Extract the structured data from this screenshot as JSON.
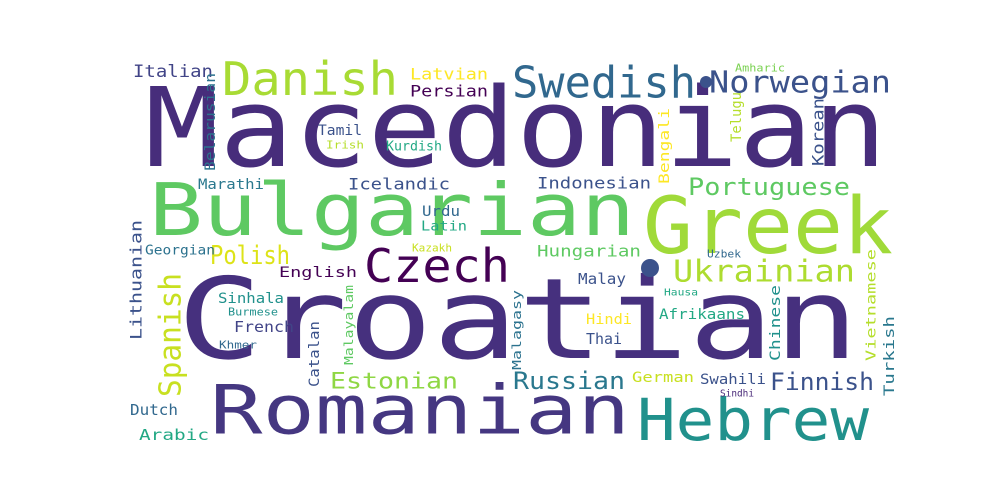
{
  "words": [
    {
      "text": "Macedonian",
      "color": "#472d7b"
    },
    {
      "text": "Croatian",
      "color": "#46307e"
    },
    {
      "text": "Bulgarian",
      "color": "#5ec962"
    },
    {
      "text": "Greek",
      "color": "#a0da39"
    },
    {
      "text": "Romanian",
      "color": "#453781"
    },
    {
      "text": "Hebrew",
      "color": "#21918c"
    },
    {
      "text": "Danish",
      "color": "#a8db34"
    },
    {
      "text": "Swedish",
      "color": "#31688e"
    },
    {
      "text": "Norwegian",
      "color": "#3b528b"
    },
    {
      "text": "Czech",
      "color": "#440154"
    },
    {
      "text": "Ukrainian",
      "color": "#addc30"
    },
    {
      "text": "Portuguese",
      "color": "#5ec962"
    },
    {
      "text": "Spanish",
      "color": "#c8e020"
    },
    {
      "text": "Polish",
      "color": "#dde318"
    },
    {
      "text": "Russian",
      "color": "#2a788e"
    },
    {
      "text": "Estonian",
      "color": "#8fd744"
    },
    {
      "text": "Finnish",
      "color": "#3b528b"
    },
    {
      "text": "Italian",
      "color": "#414487"
    },
    {
      "text": "Latvian",
      "color": "#fde725"
    },
    {
      "text": "Persian",
      "color": "#440154"
    },
    {
      "text": "Belarusian",
      "color": "#2c728e"
    },
    {
      "text": "Amharic",
      "color": "#7ad151"
    },
    {
      "text": "Telugu",
      "color": "#b5de2b"
    },
    {
      "text": "Bengali",
      "color": "#fde725"
    },
    {
      "text": "Korean",
      "color": "#3b528b"
    },
    {
      "text": "Tamil",
      "color": "#3b528b"
    },
    {
      "text": "Irish",
      "color": "#b5de2b"
    },
    {
      "text": "Kurdish",
      "color": "#22a884"
    },
    {
      "text": "Marathi",
      "color": "#2a788e"
    },
    {
      "text": "Icelandic",
      "color": "#3b528b"
    },
    {
      "text": "Indonesian",
      "color": "#3b528b"
    },
    {
      "text": "Urdu",
      "color": "#31688e"
    },
    {
      "text": "Latin",
      "color": "#22a884"
    },
    {
      "text": "Georgian",
      "color": "#2c728e"
    },
    {
      "text": "Lithuanian",
      "color": "#3b528b"
    },
    {
      "text": "Kazakh",
      "color": "#c8e020"
    },
    {
      "text": "English",
      "color": "#440154"
    },
    {
      "text": "Hungarian",
      "color": "#5ec962"
    },
    {
      "text": "Uzbek",
      "color": "#31688e"
    },
    {
      "text": "Vietnamese",
      "color": "#b5de2b"
    },
    {
      "text": "Malay",
      "color": "#3b528b"
    },
    {
      "text": "Hausa",
      "color": "#22a884"
    },
    {
      "text": "Sinhala",
      "color": "#21918c"
    },
    {
      "text": "Malayalam",
      "color": "#5ec962"
    },
    {
      "text": "Malagasy",
      "color": "#2c728e"
    },
    {
      "text": "Burmese",
      "color": "#21918c"
    },
    {
      "text": "French",
      "color": "#414487"
    },
    {
      "text": "Catalan",
      "color": "#3b528b"
    },
    {
      "text": "Hindi",
      "color": "#fde725"
    },
    {
      "text": "Afrikaans",
      "color": "#22a884"
    },
    {
      "text": "Chinese",
      "color": "#21918c"
    },
    {
      "text": "Khmer",
      "color": "#31688e"
    },
    {
      "text": "Thai",
      "color": "#3b528b"
    },
    {
      "text": "Turkish",
      "color": "#2a788e"
    },
    {
      "text": "German",
      "color": "#c8e020"
    },
    {
      "text": "Swahili",
      "color": "#3b528b"
    },
    {
      "text": "Sindhi",
      "color": "#482878"
    },
    {
      "text": "Dutch",
      "color": "#31688e"
    },
    {
      "text": "Arabic",
      "color": "#22a884"
    }
  ]
}
